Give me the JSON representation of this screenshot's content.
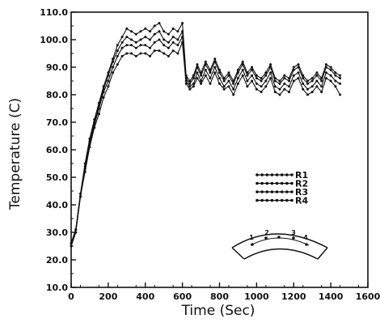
{
  "chart_data": {
    "type": "line",
    "xlabel": "Time (Sec)",
    "ylabel": "Temperature (C)",
    "xlim": [
      0,
      1600
    ],
    "ylim": [
      10,
      110
    ],
    "x_ticks": [
      0,
      200,
      400,
      600,
      800,
      1000,
      1200,
      1400,
      1600
    ],
    "y_ticks": [
      "10.0",
      "20.0",
      "30.0",
      "40.0",
      "50.0",
      "60.0",
      "70.0",
      "80.0",
      "90.0",
      "100.0",
      "110.0"
    ],
    "grid": false,
    "legend_position": "right-middle",
    "x": [
      0,
      25,
      50,
      75,
      100,
      125,
      150,
      175,
      200,
      225,
      250,
      275,
      300,
      325,
      350,
      375,
      400,
      425,
      450,
      475,
      500,
      525,
      550,
      575,
      600,
      620,
      640,
      660,
      680,
      700,
      725,
      750,
      775,
      800,
      825,
      850,
      875,
      900,
      925,
      950,
      975,
      1000,
      1025,
      1050,
      1075,
      1100,
      1125,
      1150,
      1175,
      1200,
      1225,
      1250,
      1275,
      1300,
      1325,
      1350,
      1375,
      1400,
      1425,
      1450
    ],
    "series": [
      {
        "name": "R1",
        "values": [
          26,
          31,
          44,
          55,
          64,
          71,
          77,
          83,
          88,
          93,
          98,
          101,
          104,
          103,
          102,
          103,
          104,
          103,
          105,
          106,
          103,
          102,
          104,
          103,
          106,
          87,
          85,
          87,
          91,
          88,
          92,
          89,
          93,
          89,
          86,
          88,
          85,
          89,
          92,
          88,
          90,
          87,
          86,
          88,
          91,
          86,
          85,
          87,
          86,
          90,
          91,
          87,
          85,
          86,
          88,
          86,
          91,
          90,
          88,
          87
        ]
      },
      {
        "name": "R2",
        "values": [
          26,
          31,
          44,
          54,
          63,
          70,
          76,
          82,
          87,
          92,
          96,
          99,
          101,
          100,
          99,
          100,
          101,
          100,
          102,
          103,
          100,
          99,
          101,
          100,
          103,
          86,
          84,
          86,
          90,
          87,
          91,
          88,
          92,
          88,
          85,
          87,
          84,
          88,
          91,
          87,
          89,
          86,
          85,
          87,
          90,
          85,
          84,
          86,
          85,
          89,
          90,
          86,
          84,
          85,
          87,
          85,
          90,
          89,
          87,
          86
        ]
      },
      {
        "name": "R3",
        "values": [
          25,
          30,
          43,
          53,
          62,
          69,
          75,
          81,
          85,
          90,
          94,
          97,
          98,
          98,
          97,
          98,
          98,
          97,
          99,
          100,
          98,
          97,
          99,
          98,
          101,
          85,
          83,
          84,
          88,
          85,
          89,
          86,
          90,
          86,
          83,
          85,
          82,
          86,
          89,
          85,
          87,
          84,
          83,
          85,
          88,
          83,
          82,
          84,
          83,
          87,
          88,
          84,
          82,
          83,
          85,
          83,
          88,
          87,
          85,
          84
        ]
      },
      {
        "name": "R4",
        "values": [
          25,
          30,
          43,
          52,
          61,
          68,
          73,
          79,
          83,
          88,
          91,
          94,
          95,
          95,
          94,
          95,
          95,
          94,
          96,
          96,
          95,
          94,
          96,
          95,
          99,
          84,
          82,
          83,
          86,
          84,
          87,
          84,
          88,
          84,
          82,
          83,
          80,
          84,
          87,
          83,
          85,
          82,
          81,
          83,
          86,
          81,
          80,
          82,
          81,
          85,
          86,
          82,
          80,
          81,
          83,
          81,
          86,
          85,
          83,
          80
        ]
      }
    ],
    "inset_labels": [
      "1",
      "2",
      "3",
      "4"
    ]
  }
}
